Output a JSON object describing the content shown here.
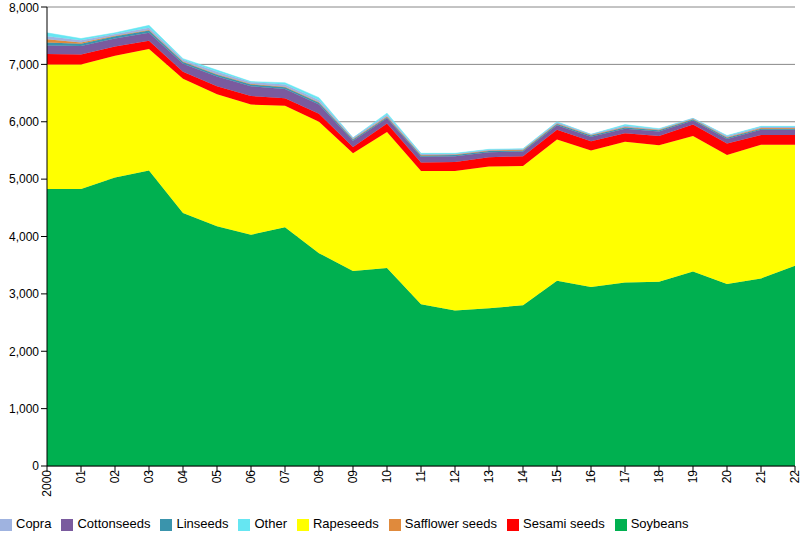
{
  "chart_data": {
    "type": "area",
    "stacked": true,
    "grid": true,
    "legend": "bottom",
    "categories": [
      "2000",
      "01",
      "02",
      "03",
      "04",
      "05",
      "06",
      "07",
      "08",
      "09",
      "10",
      "11",
      "12",
      "13",
      "14",
      "15",
      "16",
      "17",
      "18",
      "19",
      "20",
      "21",
      "22"
    ],
    "ylim": [
      0,
      8000
    ],
    "yticks": [
      0,
      {
        "value": 1000,
        "label": "1,000"
      },
      {
        "value": 2000,
        "label": "2,000"
      },
      {
        "value": 3000,
        "label": "3,000"
      },
      {
        "value": 4000,
        "label": "4,000"
      },
      {
        "value": 5000,
        "label": "5,000"
      },
      {
        "value": 6000,
        "label": "6,000"
      },
      {
        "value": 7000,
        "label": "7,000"
      },
      {
        "value": 8000,
        "label": "8,000"
      }
    ],
    "series": [
      {
        "name": "Soybeans",
        "color": "#00b050",
        "values": [
          4830,
          4830,
          5030,
          5150,
          4410,
          4180,
          4030,
          4160,
          3710,
          3400,
          3450,
          2820,
          2710,
          2750,
          2800,
          3230,
          3120,
          3200,
          3210,
          3390,
          3170,
          3270,
          3490
        ]
      },
      {
        "name": "Rapeseeds",
        "color": "#ffff00",
        "values": [
          2170,
          2170,
          2120,
          2120,
          2340,
          2300,
          2270,
          2120,
          2290,
          2050,
          2370,
          2320,
          2430,
          2470,
          2430,
          2460,
          2380,
          2450,
          2380,
          2360,
          2250,
          2330,
          2110
        ]
      },
      {
        "name": "Sesami seeds",
        "color": "#ff0000",
        "values": [
          180,
          170,
          160,
          140,
          120,
          140,
          150,
          130,
          140,
          110,
          150,
          150,
          160,
          160,
          170,
          170,
          160,
          150,
          160,
          200,
          200,
          170,
          170
        ]
      },
      {
        "name": "Cottonseeds",
        "color": "#7a5b9e",
        "values": [
          150,
          150,
          140,
          140,
          140,
          170,
          170,
          160,
          160,
          110,
          90,
          100,
          100,
          90,
          80,
          80,
          80,
          80,
          80,
          70,
          80,
          90,
          90
        ]
      },
      {
        "name": "Linseeds",
        "color": "#3a94ac",
        "values": [
          50,
          40,
          40,
          40,
          30,
          30,
          30,
          30,
          30,
          20,
          20,
          20,
          20,
          20,
          20,
          20,
          20,
          20,
          20,
          20,
          20,
          20,
          20
        ]
      },
      {
        "name": "Safflower seeds",
        "color": "#e08a3c",
        "values": [
          60,
          20,
          10,
          10,
          10,
          10,
          10,
          10,
          10,
          10,
          10,
          10,
          10,
          10,
          10,
          10,
          10,
          10,
          10,
          10,
          10,
          10,
          10
        ]
      },
      {
        "name": "Copra",
        "color": "#9fb3e0",
        "values": [
          50,
          40,
          30,
          40,
          30,
          40,
          30,
          40,
          40,
          20,
          30,
          20,
          10,
          10,
          10,
          20,
          10,
          20,
          10,
          10,
          20,
          20,
          20
        ]
      },
      {
        "name": "Other",
        "color": "#66e6f2",
        "values": [
          60,
          30,
          20,
          40,
          20,
          30,
          10,
          30,
          40,
          0,
          30,
          10,
          10,
          10,
          10,
          10,
          0,
          20,
          10,
          0,
          10,
          10,
          10
        ]
      }
    ]
  }
}
